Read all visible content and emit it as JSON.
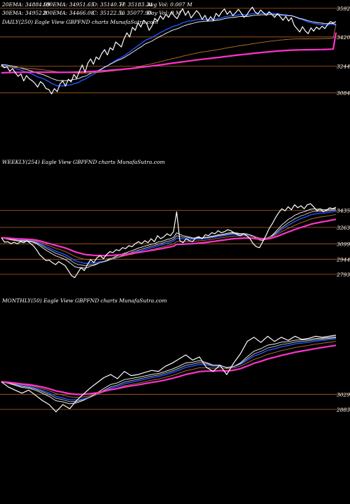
{
  "header": {
    "row1": [
      "20EMA: 34884.69",
      "100EMA: 34951.65",
      "O: 35140.77",
      "H: 35183.34",
      "Avg Vol: 0.007 M"
    ],
    "row2": [
      "30EMA: 34952.8",
      "200EMA: 34466.08",
      "C: 35122.56",
      "L: 35077.90",
      "Day Vol: 0  M"
    ]
  },
  "colors": {
    "background": "#000000",
    "price": "#ffffff",
    "ema_blue": "#2255ff",
    "ema_white": "#ffffff",
    "ema_gray": "#c8c8c8",
    "ema_brown": "#b87333",
    "ema_magenta": "#ff33cc",
    "gridline": "#b06020",
    "label": "#ffffff"
  },
  "chart_data": [
    {
      "type": "line",
      "title": "DAILY(250) Eagle  View  GBPFND charts MunafaSutra.com",
      "ylim": [
        30200,
        36000
      ],
      "x": [
        0,
        1,
        2,
        3,
        4,
        5,
        6,
        7,
        8,
        9,
        10,
        11,
        12,
        13,
        14,
        15,
        16,
        17,
        18,
        19,
        20,
        21,
        22,
        23,
        24,
        25,
        26,
        27,
        28,
        29,
        30,
        31,
        32,
        33,
        34,
        35,
        36,
        37,
        38,
        39,
        40,
        41,
        42,
        43,
        44,
        45,
        46,
        47,
        48,
        49,
        50,
        51,
        52,
        53,
        54,
        55,
        56,
        57,
        58,
        59,
        60,
        61,
        62,
        63,
        64,
        65,
        66,
        67,
        68,
        69,
        70,
        71,
        72,
        73,
        74,
        75,
        76,
        77,
        78,
        79,
        80,
        81,
        82,
        83,
        84,
        85,
        86,
        87,
        88,
        89,
        90,
        91,
        92,
        93,
        94,
        95,
        96,
        97,
        98,
        99,
        100,
        101,
        102,
        103,
        104,
        105,
        106,
        107,
        108,
        109,
        110,
        111,
        112,
        113,
        114,
        115,
        116,
        117,
        118,
        119,
        120
      ],
      "levels": [
        {
          "value": 35920,
          "label": "3592"
        },
        {
          "value": 34202,
          "label": "3420"
        },
        {
          "value": 32445,
          "label": "3244"
        },
        {
          "value": 30842,
          "label": "3084"
        }
      ],
      "series": [
        {
          "role": "price",
          "values": [
            32530,
            32350,
            32410,
            32140,
            32300,
            32050,
            31840,
            31980,
            31560,
            31880,
            31690,
            31580,
            31420,
            31190,
            31520,
            31380,
            31100,
            31050,
            30780,
            31100,
            30920,
            31380,
            31560,
            31250,
            31660,
            31500,
            31950,
            31720,
            32150,
            32520,
            32080,
            32630,
            32880,
            32560,
            33000,
            32850,
            33210,
            33440,
            33120,
            33560,
            33420,
            33900,
            33760,
            33600,
            34100,
            34450,
            34200,
            34780,
            34600,
            35050,
            34800,
            35200,
            35060,
            34600,
            34860,
            35320,
            35150,
            35480,
            35260,
            35560,
            35380,
            35720,
            35460,
            35300,
            35620,
            35900,
            35500,
            35760,
            35340,
            35560,
            35780,
            35600,
            35250,
            35500,
            35150,
            35420,
            35200,
            35620,
            35430,
            35700,
            35880,
            35560,
            35760,
            35480,
            35660,
            35860,
            35640,
            35380,
            35520,
            35780,
            35990,
            35700,
            35580,
            35820,
            35650,
            35500,
            35720,
            35560,
            35380,
            35600,
            35420,
            35200,
            35440,
            35150,
            35360,
            34900,
            34700,
            34500,
            34820,
            34560,
            34400,
            34750,
            34550,
            34800,
            34660,
            34850,
            34700,
            34950,
            35120,
            35050,
            35120
          ]
        },
        {
          "role": "ema",
          "color": "#2255ff",
          "values": [
            32500,
            32469,
            32443,
            32398,
            32367,
            32319,
            32258,
            32215,
            32141,
            32093,
            32034,
            31969,
            31892,
            31800,
            31753,
            31695,
            31608,
            31525,
            31410,
            31347,
            31271,
            31258,
            31273,
            31271,
            31311,
            31328,
            31403,
            31429,
            31502,
            31609,
            31659,
            31766,
            31883,
            31946,
            32048,
            32129,
            32247,
            32374,
            32461,
            32581,
            32676,
            32793,
            32885,
            32953,
            33057,
            33191,
            33296,
            33440,
            33550,
            33689,
            33794,
            33929,
            34036,
            34091,
            34161,
            34273,
            34358,
            34466,
            34543,
            34641,
            34708,
            34795,
            34859,
            34900,
            34966,
            35054,
            35096,
            35155,
            35164,
            35192,
            35237,
            35259,
            35250,
            35262,
            35241,
            35248,
            35244,
            35287,
            35305,
            35345,
            35411,
            35432,
            35469,
            35469,
            35491,
            35532,
            35545,
            35530,
            35529,
            35553,
            35595,
            35605,
            35605,
            35624,
            35627,
            35615,
            35625,
            35618,
            35596,
            35596,
            35576,
            35540,
            35531,
            35495,
            35482,
            35427,
            35358,
            35276,
            35233,
            35169,
            35095,
            35062,
            35012,
            34992,
            34960,
            34950,
            34926,
            34927,
            34946,
            34955,
            34884
          ]
        },
        {
          "role": "ema",
          "color": "#ffffff",
          "values": [
            32550,
            32528,
            32510,
            32477,
            32455,
            32419,
            32373,
            32340,
            32284,
            32248,
            32202,
            32152,
            32093,
            32021,
            31984,
            31939,
            31870,
            31803,
            31711,
            31658,
            31596,
            31580,
            31585,
            31574,
            31600,
            31610,
            31662,
            31673,
            31727,
            31807,
            31842,
            31924,
            32016,
            32063,
            32142,
            32204,
            32297,
            32399,
            32467,
            32565,
            32643,
            32740,
            32815,
            32874,
            32960,
            33072,
            33162,
            33282,
            33380,
            33501,
            33598,
            33717,
            33817,
            33882,
            33959,
            34062,
            34149,
            34249,
            34324,
            34416,
            34490,
            34578,
            34641,
            34688,
            34757,
            34843,
            34895,
            34957,
            34993,
            35032,
            35081,
            35115,
            35127,
            35151,
            35149,
            35164,
            35165,
            35202,
            35219,
            35253,
            35308,
            35331,
            35363,
            35370,
            35389,
            35422,
            35436,
            35430,
            35431,
            35453,
            35489,
            35503,
            35509,
            35528,
            35535,
            35532,
            35544,
            35545,
            35534,
            35539,
            35531,
            35507,
            35503,
            35479,
            35470,
            35429,
            35377,
            35314,
            35280,
            35229,
            35170,
            35141,
            35098,
            35076,
            35047,
            35033,
            35009,
            35004,
            35014,
            35017,
            34953
          ]
        },
        {
          "role": "ema",
          "color": "#b87333",
          "values": [
            32400,
            32397,
            32395,
            32388,
            32384,
            32375,
            32364,
            32355,
            32339,
            32329,
            32316,
            32301,
            32283,
            32261,
            32246,
            32229,
            32206,
            32183,
            32154,
            32133,
            32108,
            32094,
            32084,
            32068,
            32060,
            32049,
            32047,
            32036,
            32034,
            32038,
            32031,
            32038,
            32052,
            32056,
            32069,
            32076,
            32092,
            32113,
            32124,
            32144,
            32160,
            32185,
            32204,
            32219,
            32244,
            32276,
            32302,
            32340,
            32372,
            32413,
            32448,
            32490,
            32528,
            32557,
            32591,
            32634,
            32672,
            32717,
            32756,
            32800,
            32840,
            32886,
            32925,
            32960,
            33001,
            33048,
            33085,
            33126,
            33158,
            33193,
            33232,
            33266,
            33292,
            33322,
            33345,
            33372,
            33394,
            33425,
            33452,
            33483,
            33517,
            33546,
            33578,
            33603,
            33631,
            33662,
            33689,
            33711,
            33734,
            33761,
            33792,
            33818,
            33841,
            33868,
            33892,
            33912,
            33936,
            33958,
            33976,
            33997,
            34015,
            34028,
            34045,
            34057,
            34072,
            34079,
            34082,
            34082,
            34088,
            34089,
            34087,
            34091,
            34091,
            34095,
            34096,
            34101,
            34103,
            34109,
            34118,
            34126,
            34951
          ]
        },
        {
          "role": "ema",
          "color": "#ff33cc",
          "values": [
            32050,
            32055,
            32060,
            32064,
            32069,
            32073,
            32076,
            32080,
            32081,
            32084,
            32086,
            32088,
            32088,
            32087,
            32088,
            32089,
            32087,
            32085,
            32080,
            32079,
            32075,
            32075,
            32077,
            32077,
            32080,
            32082,
            32087,
            32090,
            32095,
            32104,
            32108,
            32117,
            32128,
            32134,
            32144,
            32152,
            32164,
            32177,
            32187,
            32200,
            32212,
            32227,
            32240,
            32251,
            32266,
            32284,
            32299,
            32320,
            32339,
            32361,
            32381,
            32403,
            32424,
            32441,
            32460,
            32483,
            32503,
            32527,
            32548,
            32572,
            32594,
            32619,
            32641,
            32661,
            32684,
            32709,
            32731,
            32755,
            32775,
            32797,
            32820,
            32841,
            32859,
            32880,
            32897,
            32917,
            32934,
            32956,
            32974,
            32996,
            33019,
            33039,
            33060,
            33078,
            33098,
            33119,
            33138,
            33154,
            33171,
            33190,
            33211,
            33229,
            33245,
            33263,
            33280,
            33295,
            33312,
            33327,
            33340,
            33355,
            33368,
            33378,
            33391,
            33400,
            33411,
            33417,
            33421,
            33423,
            33429,
            33431,
            33431,
            33435,
            33437,
            33441,
            33444,
            33449,
            33452,
            33458,
            33465,
            33471,
            34466
          ]
        }
      ]
    },
    {
      "type": "line",
      "title": "WEEKLY(254) Eagle  View  GBPFND charts MunafaSutra.com",
      "ylim": [
        27500,
        36200
      ],
      "levels": [
        {
          "value": 34350,
          "label": "3435"
        },
        {
          "value": 32630,
          "label": "3263"
        },
        {
          "value": 30990,
          "label": "3099"
        },
        {
          "value": 29440,
          "label": "2944"
        },
        {
          "value": 27930,
          "label": "2793"
        }
      ],
      "series": [
        {
          "role": "price",
          "values": [
            31600,
            31150,
            31200,
            31000,
            31150,
            30980,
            31200,
            31100,
            31300,
            31050,
            30800,
            30400,
            29900,
            29600,
            29300,
            29350,
            29100,
            28900,
            29200,
            29000,
            28800,
            28300,
            27800,
            27600,
            28100,
            28600,
            28300,
            28900,
            29400,
            29100,
            29600,
            29800,
            29500,
            29900,
            30200,
            30100,
            30400,
            30300,
            30600,
            30500,
            30800,
            30700,
            31000,
            31200,
            31000,
            31300,
            31100,
            31500,
            31200,
            31800,
            31500,
            31700,
            32000,
            31800,
            32200,
            34200,
            31300,
            31100,
            31500,
            31300,
            31200,
            31600,
            31700,
            31500,
            31900,
            31800,
            32100,
            32000,
            32300,
            32100,
            32200,
            32400,
            32300,
            32100,
            31900,
            31800,
            32000,
            31800,
            31500,
            31000,
            30700,
            30600,
            31200,
            31800,
            32500,
            33000,
            33600,
            34100,
            34500,
            34300,
            34700,
            34400,
            34900,
            34600,
            34800,
            34500,
            34900,
            35000,
            34700,
            34300,
            34500,
            34200,
            34350,
            34600,
            34500,
            34650
          ]
        }
      ]
    },
    {
      "type": "line",
      "title": "MONTHLY(50) Eagle  View  GBPFND charts MunafaSutra.com",
      "ylim": [
        27000,
        36600
      ],
      "levels": [
        {
          "value": 30290,
          "label": "3029"
        },
        {
          "value": 28830,
          "label": "2883"
        }
      ],
      "series": [
        {
          "role": "price",
          "values": [
            31500,
            31000,
            30700,
            30400,
            30700,
            30200,
            29700,
            29300,
            28600,
            29300,
            28900,
            29700,
            30300,
            30900,
            31400,
            31900,
            32200,
            31800,
            32500,
            32100,
            32200,
            32400,
            32600,
            32500,
            33000,
            33300,
            33700,
            34100,
            33600,
            33900,
            32900,
            32500,
            33100,
            32200,
            33300,
            34200,
            35400,
            35800,
            35300,
            35900,
            35400,
            35800,
            35500,
            35900,
            35600,
            35700,
            35900,
            35800,
            35900,
            36000
          ]
        }
      ]
    }
  ]
}
